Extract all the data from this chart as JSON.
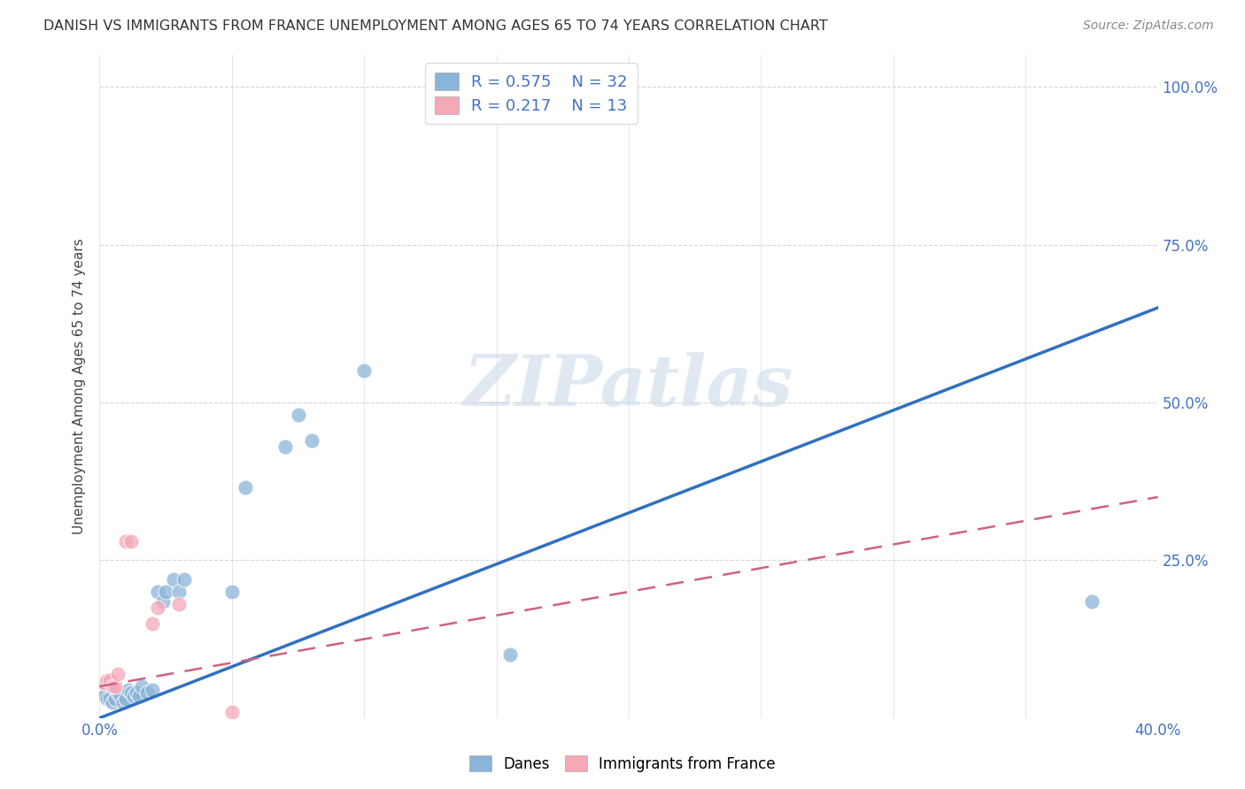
{
  "title": "DANISH VS IMMIGRANTS FROM FRANCE UNEMPLOYMENT AMONG AGES 65 TO 74 YEARS CORRELATION CHART",
  "source": "Source: ZipAtlas.com",
  "ylabel": "Unemployment Among Ages 65 to 74 years",
  "x_lim": [
    0.0,
    0.4
  ],
  "y_lim": [
    0.0,
    1.05
  ],
  "x_ticks": [
    0.0,
    0.05,
    0.1,
    0.15,
    0.2,
    0.25,
    0.3,
    0.35,
    0.4
  ],
  "x_tick_labels_show": {
    "0.0": "0.0%",
    "0.40": "40.0%"
  },
  "y_ticks": [
    0.0,
    0.25,
    0.5,
    0.75,
    1.0
  ],
  "y_tick_labels": [
    "",
    "25.0%",
    "50.0%",
    "75.0%",
    "100.0%"
  ],
  "danes_color": "#8ab4d8",
  "danes_edge_color": "#6090bb",
  "immigrants_color": "#f4a8b8",
  "immigrants_edge_color": "#d08090",
  "danes_line_color": "#3070c0",
  "immigrants_line_color": "#d06080",
  "danes_scatter": [
    [
      0.001,
      0.04
    ],
    [
      0.002,
      0.035
    ],
    [
      0.003,
      0.03
    ],
    [
      0.004,
      0.03
    ],
    [
      0.005,
      0.025
    ],
    [
      0.006,
      0.03
    ],
    [
      0.007,
      0.04
    ],
    [
      0.008,
      0.035
    ],
    [
      0.009,
      0.025
    ],
    [
      0.01,
      0.03
    ],
    [
      0.011,
      0.045
    ],
    [
      0.012,
      0.04
    ],
    [
      0.013,
      0.035
    ],
    [
      0.014,
      0.04
    ],
    [
      0.015,
      0.035
    ],
    [
      0.016,
      0.05
    ],
    [
      0.018,
      0.04
    ],
    [
      0.02,
      0.045
    ],
    [
      0.022,
      0.2
    ],
    [
      0.024,
      0.185
    ],
    [
      0.025,
      0.2
    ],
    [
      0.028,
      0.22
    ],
    [
      0.03,
      0.2
    ],
    [
      0.032,
      0.22
    ],
    [
      0.05,
      0.2
    ],
    [
      0.055,
      0.365
    ],
    [
      0.07,
      0.43
    ],
    [
      0.075,
      0.48
    ],
    [
      0.08,
      0.44
    ],
    [
      0.1,
      0.55
    ],
    [
      0.155,
      0.1
    ],
    [
      0.375,
      0.185
    ]
  ],
  "immigrants_scatter": [
    [
      0.001,
      0.055
    ],
    [
      0.002,
      0.055
    ],
    [
      0.003,
      0.06
    ],
    [
      0.004,
      0.06
    ],
    [
      0.005,
      0.05
    ],
    [
      0.006,
      0.05
    ],
    [
      0.007,
      0.07
    ],
    [
      0.01,
      0.28
    ],
    [
      0.012,
      0.28
    ],
    [
      0.02,
      0.15
    ],
    [
      0.022,
      0.175
    ],
    [
      0.03,
      0.18
    ],
    [
      0.05,
      0.01
    ]
  ],
  "danes_R": 0.575,
  "danes_N": 32,
  "immigrants_R": 0.217,
  "immigrants_N": 13,
  "watermark": "ZIPatlas",
  "legend_danes": "Danes",
  "legend_immigrants": "Immigrants from France",
  "grid_color": "#cccccc",
  "tick_color": "#4472c4",
  "title_color": "#333333",
  "source_color": "#888888"
}
